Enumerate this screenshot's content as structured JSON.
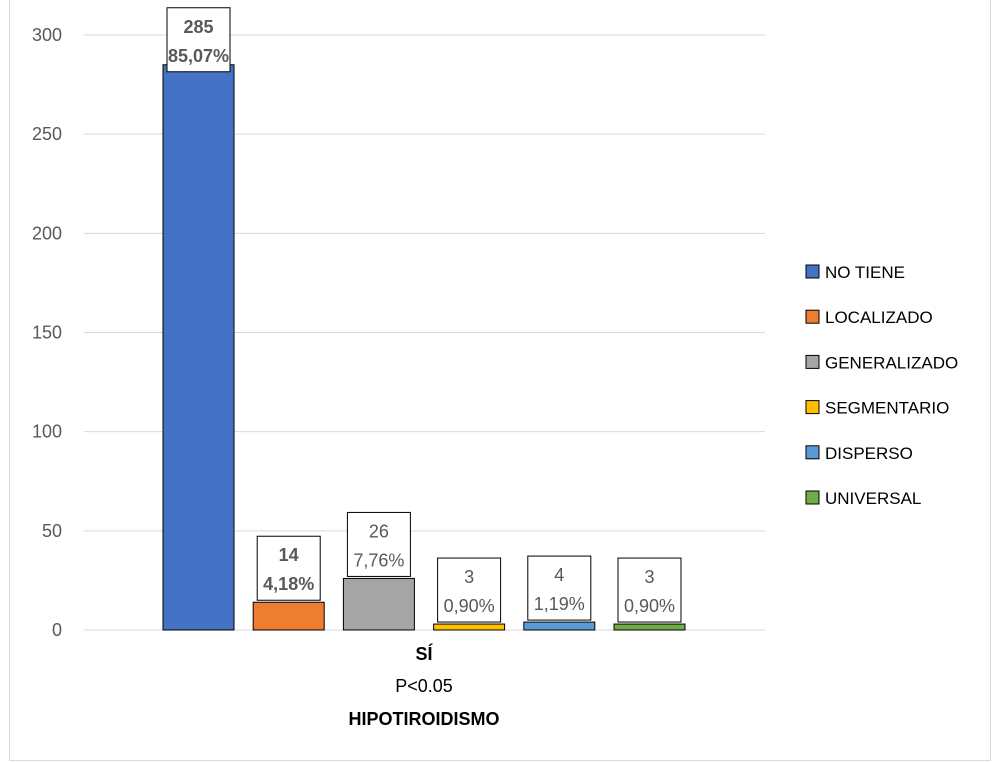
{
  "chart_data": {
    "type": "bar",
    "title": "",
    "xlabel": "",
    "ylabel": "",
    "ylim": [
      0,
      300
    ],
    "yticks": [
      0,
      50,
      100,
      150,
      200,
      250,
      300
    ],
    "grid": true,
    "legend_position": "right",
    "category_label_lines": [
      "SÍ",
      "P<0.05",
      "HIPOTIROIDISMO"
    ],
    "series": [
      {
        "name": "NO TIENE",
        "value": 285,
        "percent": "85,07%",
        "color": "#4472C4",
        "bold_label": true
      },
      {
        "name": "LOCALIZADO",
        "value": 14,
        "percent": "4,18%",
        "color": "#ED7D31",
        "bold_label": true
      },
      {
        "name": "GENERALIZADO",
        "value": 26,
        "percent": "7,76%",
        "color": "#A5A5A5",
        "bold_label": false
      },
      {
        "name": "SEGMENTARIO",
        "value": 3,
        "percent": "0,90%",
        "color": "#FFC000",
        "bold_label": false
      },
      {
        "name": "DISPERSO",
        "value": 4,
        "percent": "1,19%",
        "color": "#5B9BD5",
        "bold_label": false
      },
      {
        "name": "UNIVERSAL",
        "value": 3,
        "percent": "0,90%",
        "color": "#70AD47",
        "bold_label": false
      }
    ]
  }
}
